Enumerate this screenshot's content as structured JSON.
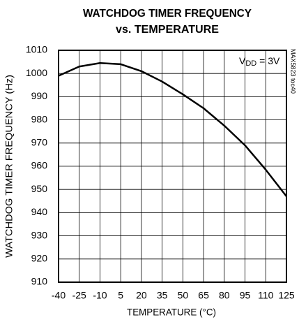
{
  "chart_data": {
    "type": "line",
    "title": [
      "WATCHDOG TIMER FREQUENCY",
      "vs. TEMPERATURE"
    ],
    "x_label": "TEMPERATURE (°C)",
    "y_label": "WATCHDOG TIMER FREQUENCY (Hz)",
    "annotation": [
      "V",
      "DD",
      " = 3V"
    ],
    "side_note": "MAX5823 toc40",
    "x": [
      -40,
      -25,
      -10,
      5,
      20,
      35,
      50,
      65,
      80,
      95,
      110,
      125
    ],
    "series": [
      {
        "color": "#000000",
        "values": [
          999,
          1003,
          1004.5,
          1004,
          1001,
          996.5,
          991,
          985,
          977.5,
          969,
          958.5,
          947
        ]
      }
    ],
    "xlim": [
      -40,
      125
    ],
    "xticks": [
      -40,
      -25,
      -10,
      5,
      20,
      35,
      50,
      65,
      80,
      95,
      110,
      125
    ],
    "ylim": [
      910,
      1010
    ],
    "yticks": [
      910,
      920,
      930,
      940,
      950,
      960,
      970,
      980,
      990,
      1000,
      1010
    ],
    "grid": true
  }
}
